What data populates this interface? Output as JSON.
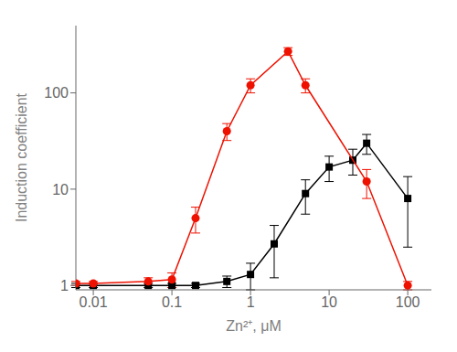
{
  "chart_data": {
    "type": "line",
    "title": "",
    "xlabel": "Zn²⁺, μM",
    "ylabel": "Induction coefficient",
    "log": true,
    "xlim": [
      0.006,
      200
    ],
    "ylim": [
      0.9,
      500
    ],
    "xticks": [
      0.01,
      0.1,
      1,
      10,
      100
    ],
    "yticks": [
      1,
      10,
      100
    ],
    "series": [
      {
        "color": "#000000",
        "marker": "square",
        "line_style": "solid",
        "x": [
          0.006,
          0.01,
          0.05,
          0.1,
          0.2,
          0.5,
          1.0,
          2.0,
          5.0,
          10.0,
          20.0,
          30.0,
          100.0
        ],
        "values": [
          1.0,
          1.0,
          1.0,
          1.0,
          1.0,
          1.1,
          1.3,
          2.7,
          9.0,
          17.0,
          20.0,
          30.0,
          8.0
        ],
        "errors": [
          0.05,
          0.05,
          0.05,
          0.05,
          0.05,
          0.15,
          0.4,
          1.5,
          3.5,
          5.0,
          6.0,
          7.0,
          5.5
        ]
      },
      {
        "color": "#ee1100",
        "marker": "circle",
        "line_style": "solid",
        "x": [
          0.006,
          0.01,
          0.05,
          0.1,
          0.2,
          0.5,
          1.0,
          3.0,
          5.0,
          30.0,
          100.0
        ],
        "values": [
          1.05,
          1.05,
          1.1,
          1.15,
          5.0,
          40.0,
          120.0,
          270.0,
          120.0,
          12.0,
          1.0
        ],
        "errors": [
          0.05,
          0.05,
          0.1,
          0.2,
          1.5,
          8.0,
          20.0,
          25.0,
          20.0,
          4.0,
          0.1
        ]
      }
    ]
  }
}
